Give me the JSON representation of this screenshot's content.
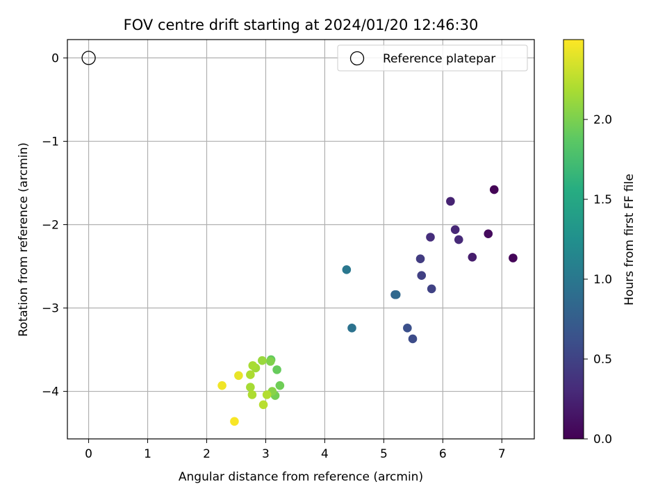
{
  "chart_data": {
    "type": "scatter",
    "title": "FOV centre drift starting at 2024/01/20 12:46:30",
    "xlabel": "Angular distance from reference (arcmin)",
    "ylabel": "Rotation from reference (arcmin)",
    "xlim": [
      -0.36,
      7.55
    ],
    "ylim": [
      -4.57,
      0.22
    ],
    "xticks": [
      0,
      1,
      2,
      3,
      4,
      5,
      6,
      7
    ],
    "xtick_labels": [
      "0",
      "1",
      "2",
      "3",
      "4",
      "5",
      "6",
      "7"
    ],
    "yticks": [
      0,
      -1,
      -2,
      -3,
      -4
    ],
    "ytick_labels": [
      "0",
      "−1",
      "−2",
      "−3",
      "−4"
    ],
    "grid": true,
    "legend": {
      "placement": "top-right",
      "entries": [
        "Reference platepar"
      ]
    },
    "reference_point": {
      "x": 0,
      "y": 0
    },
    "colorbar": {
      "label": "Hours from first FF file",
      "colormap": "viridis",
      "range": [
        0.0,
        2.5
      ],
      "ticks": [
        0.0,
        0.5,
        1.0,
        1.5,
        2.0
      ],
      "tick_labels": [
        "0.0",
        "0.5",
        "1.0",
        "1.5",
        "2.0"
      ]
    },
    "points": [
      {
        "x": 6.87,
        "y": -1.58,
        "c": 0.02
      },
      {
        "x": 7.19,
        "y": -2.4,
        "c": 0.03
      },
      {
        "x": 6.77,
        "y": -2.11,
        "c": 0.07
      },
      {
        "x": 6.5,
        "y": -2.39,
        "c": 0.2
      },
      {
        "x": 6.13,
        "y": -1.72,
        "c": 0.25
      },
      {
        "x": 6.21,
        "y": -2.06,
        "c": 0.28
      },
      {
        "x": 6.27,
        "y": -2.18,
        "c": 0.3
      },
      {
        "x": 5.79,
        "y": -2.15,
        "c": 0.33
      },
      {
        "x": 5.62,
        "y": -2.41,
        "c": 0.45
      },
      {
        "x": 5.64,
        "y": -2.61,
        "c": 0.48
      },
      {
        "x": 5.81,
        "y": -2.77,
        "c": 0.5
      },
      {
        "x": 5.49,
        "y": -3.37,
        "c": 0.58
      },
      {
        "x": 5.4,
        "y": -3.24,
        "c": 0.62
      },
      {
        "x": 5.19,
        "y": -2.84,
        "c": 0.8
      },
      {
        "x": 5.21,
        "y": -2.84,
        "c": 0.85
      },
      {
        "x": 4.46,
        "y": -3.24,
        "c": 0.95
      },
      {
        "x": 4.37,
        "y": -2.54,
        "c": 1.0
      },
      {
        "x": 3.19,
        "y": -3.74,
        "c": 1.92
      },
      {
        "x": 3.24,
        "y": -3.93,
        "c": 1.95
      },
      {
        "x": 3.09,
        "y": -3.62,
        "c": 1.9
      },
      {
        "x": 3.08,
        "y": -3.64,
        "c": 2.02
      },
      {
        "x": 3.16,
        "y": -4.05,
        "c": 1.97
      },
      {
        "x": 3.11,
        "y": -4.0,
        "c": 2.05
      },
      {
        "x": 2.94,
        "y": -3.63,
        "c": 2.12
      },
      {
        "x": 2.83,
        "y": -3.72,
        "c": 2.15
      },
      {
        "x": 2.78,
        "y": -3.69,
        "c": 2.18
      },
      {
        "x": 2.74,
        "y": -3.8,
        "c": 2.2
      },
      {
        "x": 2.74,
        "y": -3.95,
        "c": 2.17
      },
      {
        "x": 2.77,
        "y": -4.04,
        "c": 2.2
      },
      {
        "x": 3.02,
        "y": -4.04,
        "c": 2.22
      },
      {
        "x": 2.96,
        "y": -4.16,
        "c": 2.24
      },
      {
        "x": 2.54,
        "y": -3.81,
        "c": 2.42
      },
      {
        "x": 2.26,
        "y": -3.93,
        "c": 2.45
      },
      {
        "x": 2.47,
        "y": -4.36,
        "c": 2.48
      }
    ]
  }
}
